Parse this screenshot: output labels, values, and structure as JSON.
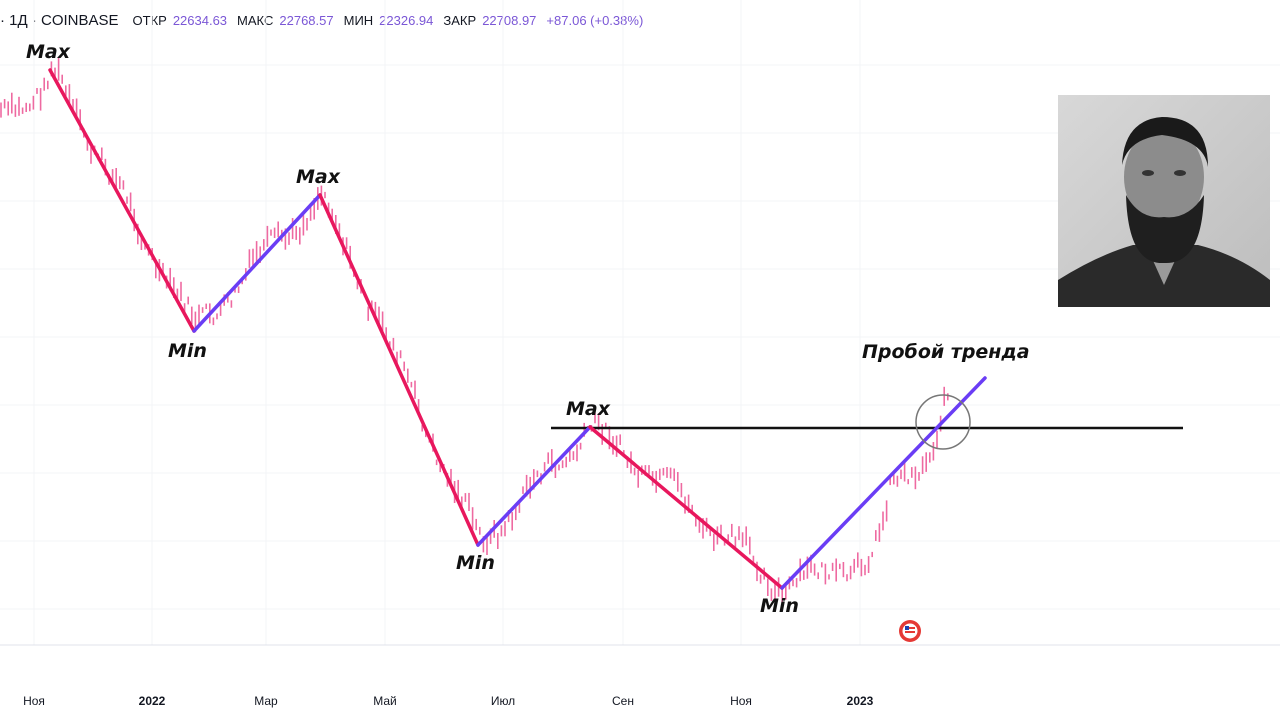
{
  "header": {
    "symbol": "· 1Д · COINBASE",
    "open_label": "ОТКР",
    "open": "22634.63",
    "high_label": "МАКС",
    "high": "22768.57",
    "low_label": "МИН",
    "low": "22326.94",
    "close_label": "ЗАКР",
    "close": "22708.97",
    "change": "+87.06 (+0.38%)"
  },
  "chart_data": {
    "type": "line",
    "x_axis_labels": [
      {
        "label": "Ноя",
        "year": false
      },
      {
        "label": "2022",
        "year": true
      },
      {
        "label": "Мар",
        "year": false
      },
      {
        "label": "Май",
        "year": false
      },
      {
        "label": "Июл",
        "year": false
      },
      {
        "label": "Сен",
        "year": false
      },
      {
        "label": "Ноя",
        "year": false
      },
      {
        "label": "2023",
        "year": true
      }
    ],
    "trend_points": [
      {
        "label": "Max",
        "kind": "max"
      },
      {
        "label": "Min",
        "kind": "min"
      },
      {
        "label": "Max",
        "kind": "max"
      },
      {
        "label": "Min",
        "kind": "min"
      },
      {
        "label": "Max",
        "kind": "max"
      },
      {
        "label": "Min",
        "kind": "min"
      }
    ],
    "annotation": "Пробой тренда",
    "colors": {
      "down_trend": "#e8175d",
      "up_trend": "#6a3df5",
      "bars": "#ee6aa1",
      "resistance_line": "#111111"
    }
  }
}
